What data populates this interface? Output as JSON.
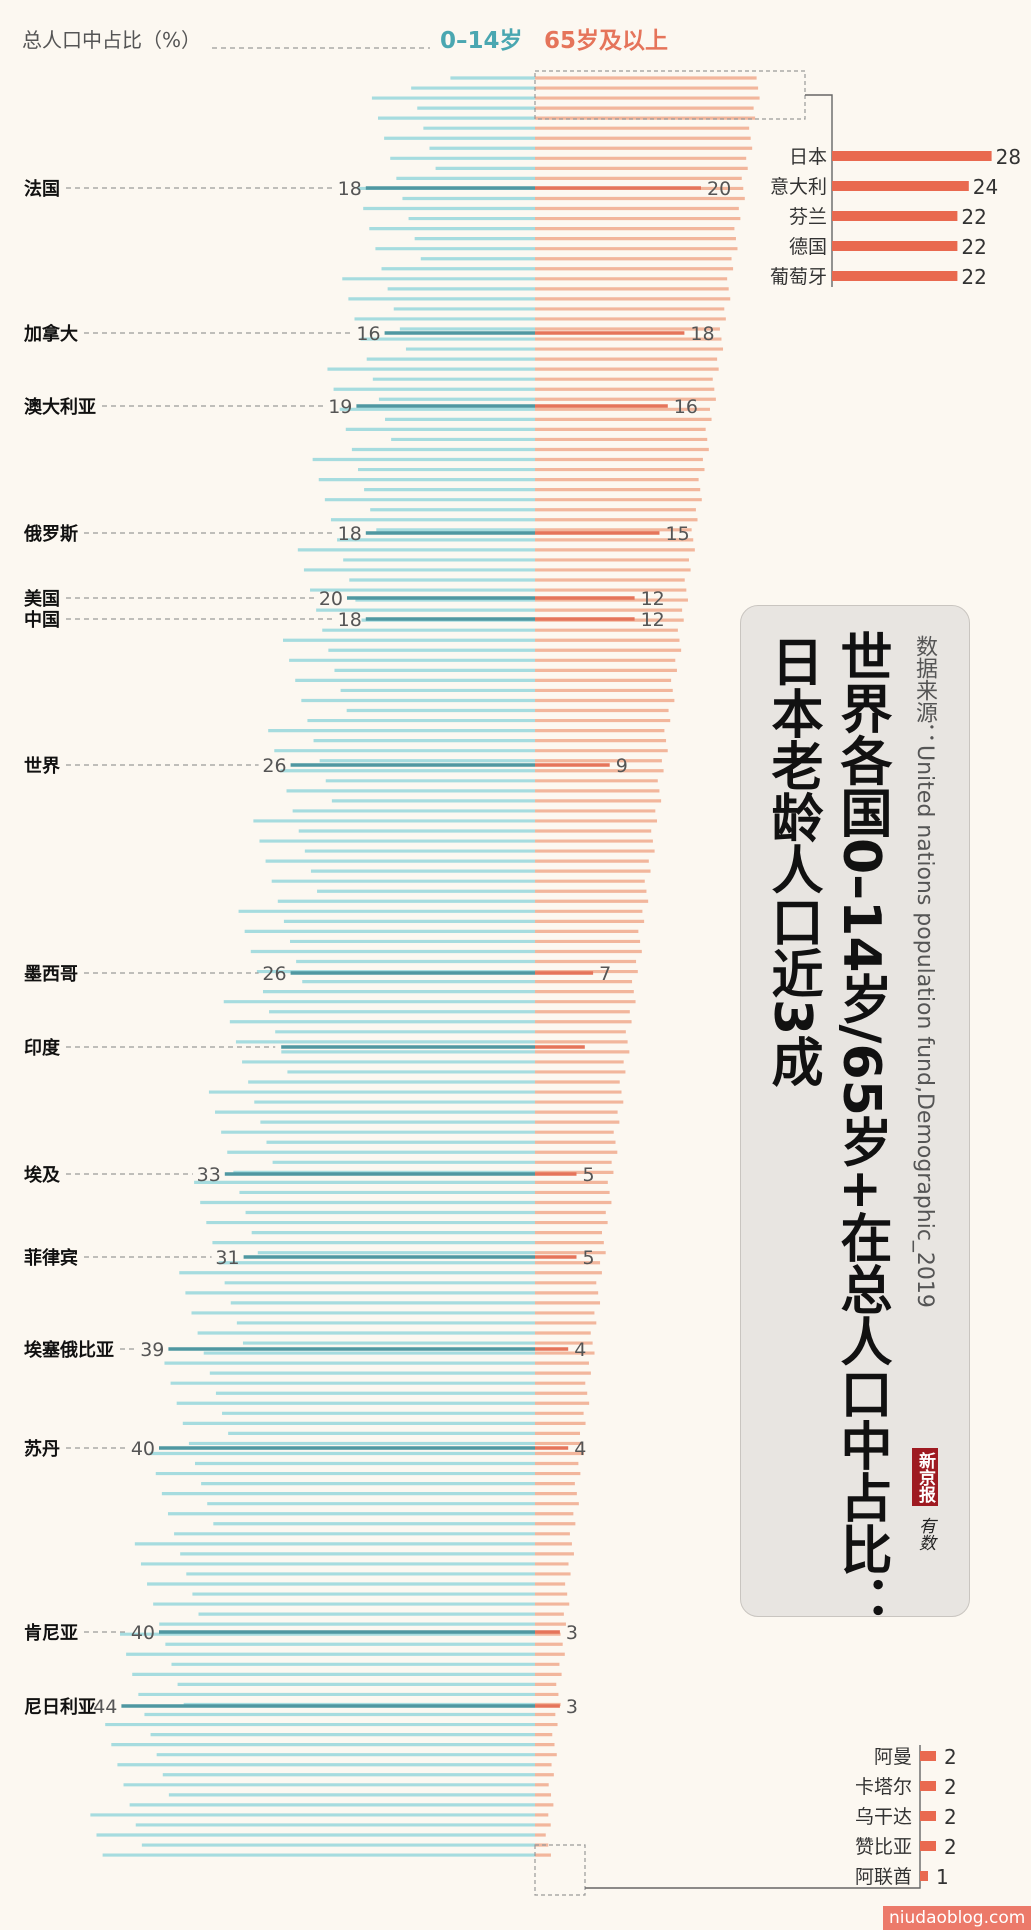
{
  "header": {
    "label": "总人口中占比（%）",
    "series_young": "0–14岁",
    "series_old": "65岁及以上"
  },
  "title": {
    "source": "数据来源：United nations population fund,Demographic_2019",
    "line1": "世界各国0–14岁/65岁+在总人口中占比：",
    "line2": "日本老龄人口近3成"
  },
  "logo": {
    "name": "新京报",
    "column": "有数"
  },
  "watermark": "niudaoblog.com",
  "colors": {
    "young": "#a6dcdf",
    "young_dark": "#4f97a1",
    "old": "#f2b69c",
    "old_dark": "#e5745a",
    "callout": "#e9694f",
    "dash": "#9a9a9a"
  },
  "chart_data": {
    "type": "bar",
    "orientation": "horizontal-diverging",
    "series": [
      {
        "name": "0–14岁",
        "side": "left"
      },
      {
        "name": "65岁及以上",
        "side": "right"
      }
    ],
    "labeled": [
      {
        "country": "法国",
        "young": 18,
        "old": 20
      },
      {
        "country": "加拿大",
        "young": 16,
        "old": 18
      },
      {
        "country": "澳大利亚",
        "young": 19,
        "old": 16
      },
      {
        "country": "俄罗斯",
        "young": 18,
        "old": 15
      },
      {
        "country": "美国",
        "young": 20,
        "old": 12
      },
      {
        "country": "中国",
        "young": 18,
        "old": 12
      },
      {
        "country": "世界",
        "young": 26,
        "old": 9
      },
      {
        "country": "墨西哥",
        "young": 26,
        "old": 7
      },
      {
        "country": "印度",
        "young": 27,
        "old": 6,
        "young_label": "",
        "old_label": ""
      },
      {
        "country": "埃及",
        "young": 33,
        "old": 5
      },
      {
        "country": "菲律宾",
        "young": 31,
        "old": 5
      },
      {
        "country": "埃塞俄比亚",
        "young": 39,
        "old": 4
      },
      {
        "country": "苏丹",
        "young": 40,
        "old": 4
      },
      {
        "country": "肯尼亚",
        "young": 40,
        "old": 3
      },
      {
        "country": "尼日利亚",
        "young": 44,
        "old": 3
      }
    ],
    "top_callout": [
      {
        "country": "日本",
        "old": 28
      },
      {
        "country": "意大利",
        "old": 24
      },
      {
        "country": "芬兰",
        "old": 22
      },
      {
        "country": "德国",
        "old": 22
      },
      {
        "country": "葡萄牙",
        "old": 22
      }
    ],
    "bottom_callout": [
      {
        "country": "阿曼",
        "old": 2
      },
      {
        "country": "卡塔尔",
        "old": 2
      },
      {
        "country": "乌干达",
        "old": 2
      },
      {
        "country": "赞比亚",
        "old": 2
      },
      {
        "country": "阿联酋",
        "old": 1
      }
    ]
  }
}
